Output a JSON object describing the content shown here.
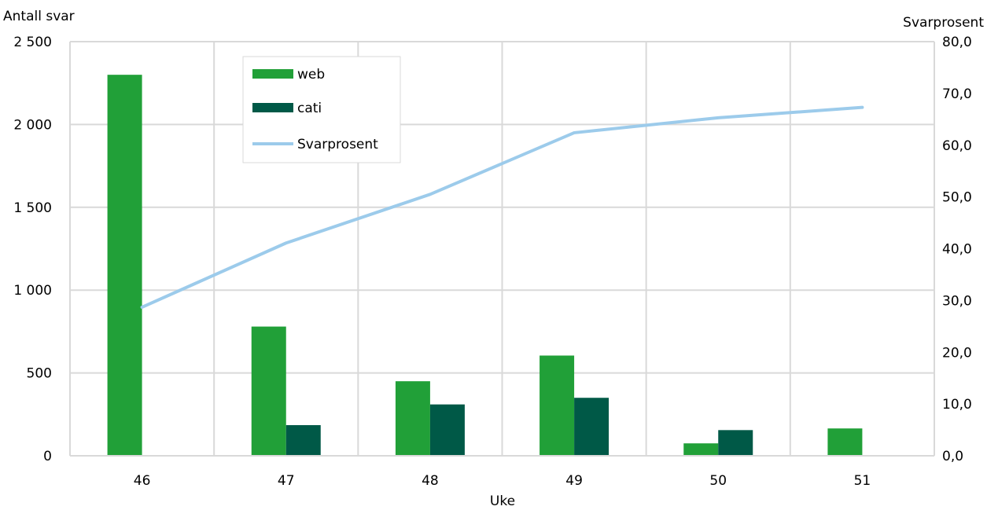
{
  "chart_data": {
    "type": "bar",
    "xlabel": "Uke",
    "ylabel_left": "Antall svar",
    "ylabel_right": "Svarprosent",
    "categories": [
      "46",
      "47",
      "48",
      "49",
      "50",
      "51"
    ],
    "ylim_left": [
      0,
      2500
    ],
    "ylim_right": [
      0,
      80
    ],
    "yticks_left": [
      "0",
      "500",
      "1 000",
      "1 500",
      "2 000",
      "2 500"
    ],
    "yticks_right": [
      "0,0",
      "10,0",
      "20,0",
      "30,0",
      "40,0",
      "50,0",
      "60,0",
      "70,0",
      "80,0"
    ],
    "grid": true,
    "legend_position": "top-left",
    "series": [
      {
        "name": "web",
        "kind": "bar",
        "axis": "left",
        "color": "#21a038",
        "values": [
          2300,
          780,
          450,
          605,
          75,
          165
        ]
      },
      {
        "name": "cati",
        "kind": "bar",
        "axis": "left",
        "color": "#005947",
        "values": [
          0,
          185,
          310,
          350,
          155,
          0
        ]
      },
      {
        "name": "Svarprosent",
        "kind": "line",
        "axis": "right",
        "color": "#9ccbeb",
        "values": [
          28.7,
          41.1,
          50.5,
          62.4,
          65.3,
          67.3
        ]
      }
    ]
  }
}
